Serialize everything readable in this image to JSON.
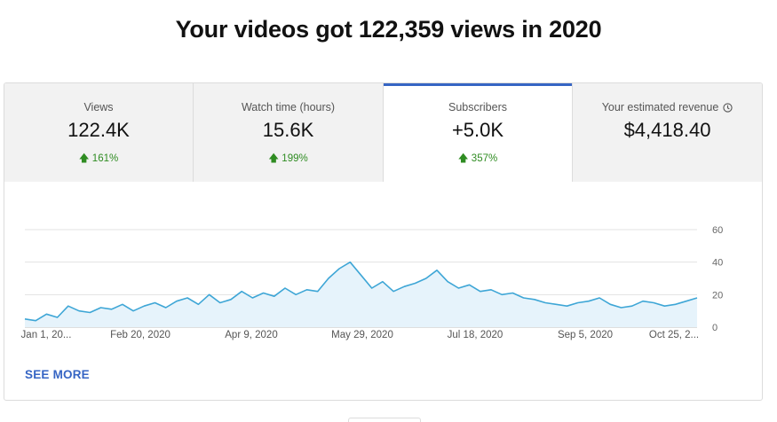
{
  "header": {
    "title": "Your videos got 122,359 views in 2020"
  },
  "tabs": [
    {
      "label": "Views",
      "value": "122.4K",
      "change": "161%",
      "active": false
    },
    {
      "label": "Watch time (hours)",
      "value": "15.6K",
      "change": "199%",
      "active": false
    },
    {
      "label": "Subscribers",
      "value": "+5.0K",
      "change": "357%",
      "active": true
    },
    {
      "label": "Your estimated revenue",
      "value": "$4,418.40",
      "change": "",
      "icon": "clock-icon",
      "active": false
    }
  ],
  "colors": {
    "accent": "#3665c4",
    "positive": "#2f8c22",
    "line": "#3ea6d6",
    "fill": "#e6f3fb"
  },
  "see_more": "SEE MORE",
  "chart_data": {
    "type": "area",
    "title": "",
    "xlabel": "",
    "ylabel": "",
    "ylim": [
      0,
      60
    ],
    "y_ticks": [
      "0",
      "20",
      "40",
      "60"
    ],
    "x_tick_labels": [
      "Jan 1, 20...",
      "Feb 20, 2020",
      "Apr 9, 2020",
      "May 29, 2020",
      "Jul 18, 2020",
      "Sep 5, 2020",
      "Oct 25, 2..."
    ],
    "grid": true,
    "x": [
      "2020-01-01",
      "2020-01-06",
      "2020-01-11",
      "2020-01-16",
      "2020-01-21",
      "2020-01-26",
      "2020-01-31",
      "2020-02-05",
      "2020-02-10",
      "2020-02-15",
      "2020-02-20",
      "2020-02-25",
      "2020-03-01",
      "2020-03-06",
      "2020-03-11",
      "2020-03-16",
      "2020-03-21",
      "2020-03-26",
      "2020-03-31",
      "2020-04-05",
      "2020-04-10",
      "2020-04-15",
      "2020-04-20",
      "2020-04-25",
      "2020-04-30",
      "2020-05-05",
      "2020-05-10",
      "2020-05-15",
      "2020-05-20",
      "2020-05-25",
      "2020-05-30",
      "2020-06-04",
      "2020-06-09",
      "2020-06-14",
      "2020-06-19",
      "2020-06-24",
      "2020-06-29",
      "2020-07-04",
      "2020-07-09",
      "2020-07-14",
      "2020-07-19",
      "2020-07-24",
      "2020-07-29",
      "2020-08-03",
      "2020-08-08",
      "2020-08-13",
      "2020-08-18",
      "2020-08-23",
      "2020-08-28",
      "2020-09-02",
      "2020-09-07",
      "2020-09-12",
      "2020-09-17",
      "2020-09-22",
      "2020-09-27",
      "2020-10-02",
      "2020-10-07",
      "2020-10-12",
      "2020-10-17",
      "2020-10-22",
      "2020-10-27",
      "2020-11-01",
      "2020-11-06"
    ],
    "series": [
      {
        "values": [
          5,
          4,
          8,
          6,
          13,
          10,
          9,
          12,
          11,
          14,
          10,
          13,
          15,
          12,
          16,
          18,
          14,
          20,
          15,
          17,
          22,
          18,
          21,
          19,
          24,
          20,
          23,
          22,
          30,
          36,
          40,
          32,
          24,
          28,
          22,
          25,
          27,
          30,
          35,
          28,
          24,
          26,
          22,
          23,
          20,
          21,
          18,
          17,
          15,
          14,
          13,
          15,
          16,
          18,
          14,
          12,
          13,
          16,
          15,
          13,
          14,
          16,
          18
        ]
      }
    ]
  }
}
